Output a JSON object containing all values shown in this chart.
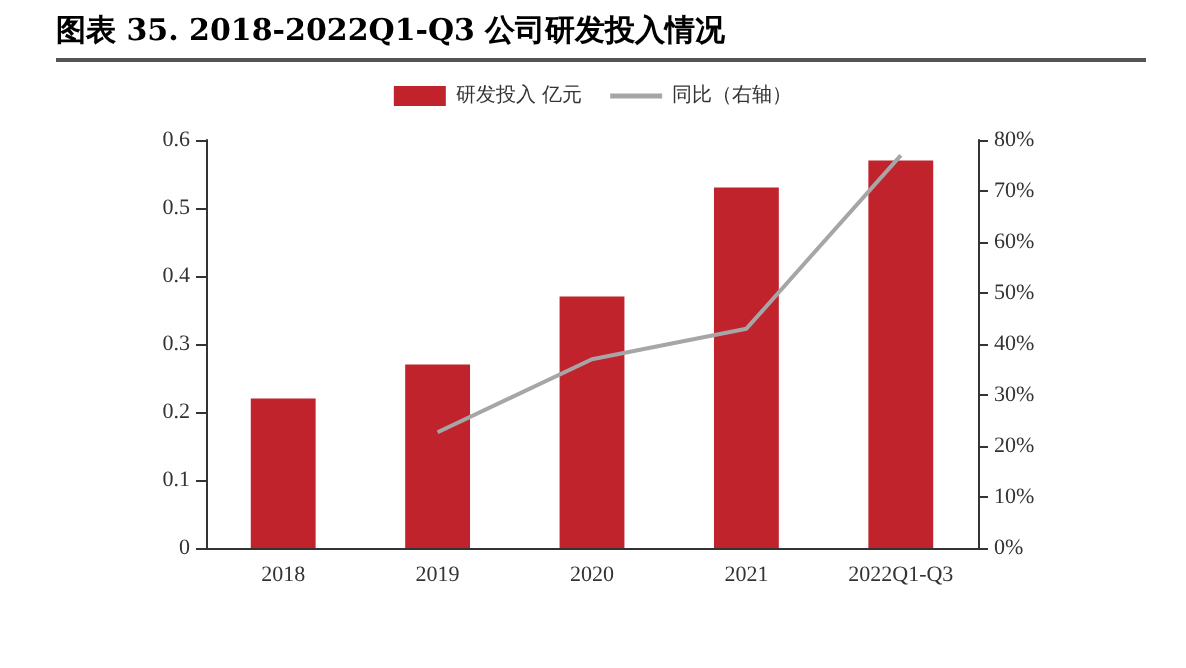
{
  "chart_data": {
    "type": "bar",
    "title": "图表 35. 2018-2022Q1-Q3 公司研发投入情况",
    "categories": [
      "2018",
      "2019",
      "2020",
      "2021",
      "2022Q1-Q3"
    ],
    "series": [
      {
        "name": "研发投入 亿元",
        "color": "#c0232c",
        "values": [
          0.22,
          0.27,
          0.37,
          0.53,
          0.57
        ]
      },
      {
        "name": "同比（右轴）",
        "type": "line",
        "axis": "y2",
        "color": "#a6a6a6",
        "values": [
          null,
          22.7,
          37,
          43,
          77
        ]
      }
    ],
    "ylim": [
      0,
      0.6
    ],
    "yticks": [
      0,
      0.1,
      0.2,
      0.3,
      0.4,
      0.5,
      0.6
    ],
    "y2lim": [
      0,
      80
    ],
    "y2ticks": [
      {
        "value": 0,
        "label": "0%"
      },
      {
        "value": 10,
        "label": "10%"
      },
      {
        "value": 20,
        "label": "20%"
      },
      {
        "value": 30,
        "label": "30%"
      },
      {
        "value": 40,
        "label": "40%"
      },
      {
        "value": 50,
        "label": "50%"
      },
      {
        "value": 60,
        "label": "60%"
      },
      {
        "value": 70,
        "label": "70%"
      },
      {
        "value": 80,
        "label": "80%"
      }
    ],
    "grid": false,
    "legend": "top",
    "marker": "none",
    "line_style": "solid"
  }
}
